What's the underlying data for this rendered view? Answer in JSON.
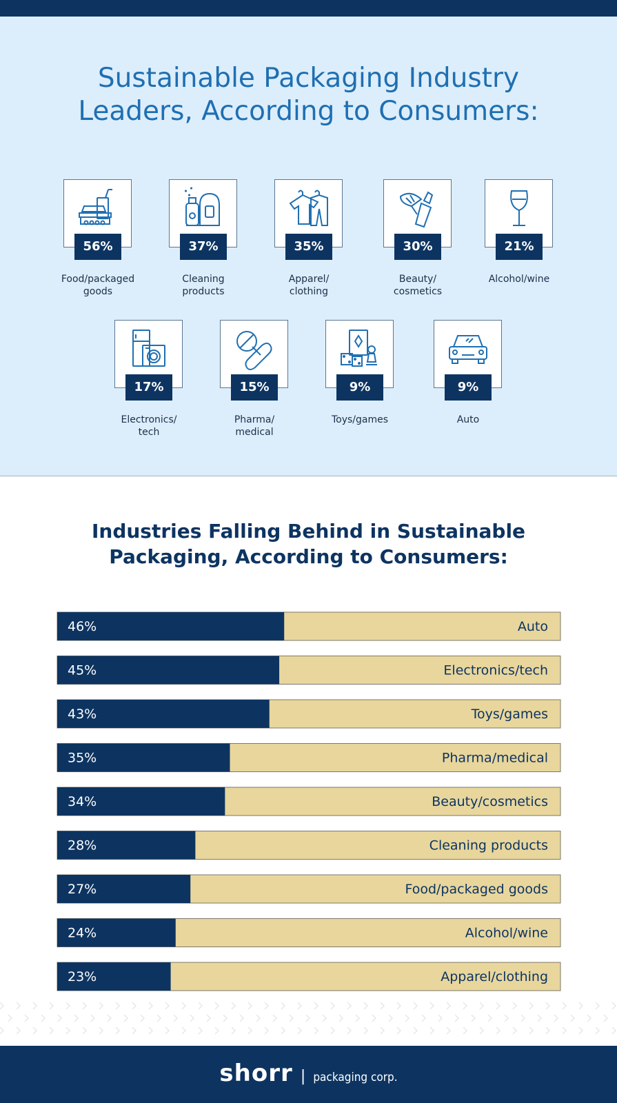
{
  "leaders": {
    "title_line1": "Sustainable Packaging Industry",
    "title_line2": "Leaders, According to Consumers:",
    "items": [
      {
        "pct": "56%",
        "label": "Food/packaged\ngoods",
        "icon": "food-container-icon"
      },
      {
        "pct": "37%",
        "label": "Cleaning\nproducts",
        "icon": "cleaning-bottles-icon"
      },
      {
        "pct": "35%",
        "label": "Apparel/\nclothing",
        "icon": "clothes-hanger-icon"
      },
      {
        "pct": "30%",
        "label": "Beauty/\ncosmetics",
        "icon": "makeup-brush-icon"
      },
      {
        "pct": "21%",
        "label": "Alcohol/wine",
        "icon": "wine-glass-icon"
      },
      {
        "pct": "17%",
        "label": "Electronics/\ntech",
        "icon": "appliances-icon"
      },
      {
        "pct": "15%",
        "label": "Pharma/\nmedical",
        "icon": "pills-icon"
      },
      {
        "pct": "9%",
        "label": "Toys/games",
        "icon": "board-game-icon"
      },
      {
        "pct": "9%",
        "label": "Auto",
        "icon": "car-icon"
      }
    ]
  },
  "behind": {
    "title": "Industries Falling Behind in Sustainable\nPackaging, According to Consumers:"
  },
  "chart_data": {
    "type": "bar",
    "orientation": "horizontal",
    "title": "Industries Falling Behind in Sustainable Packaging, According to Consumers:",
    "categories": [
      "Auto",
      "Electronics/tech",
      "Toys/games",
      "Pharma/medical",
      "Beauty/cosmetics",
      "Cleaning products",
      "Food/packaged goods",
      "Alcohol/wine",
      "Apparel/clothing"
    ],
    "values": [
      46,
      45,
      43,
      35,
      34,
      28,
      27,
      24,
      23
    ],
    "value_labels": [
      "46%",
      "45%",
      "43%",
      "35%",
      "34%",
      "28%",
      "27%",
      "24%",
      "23%"
    ],
    "xlim": [
      0,
      100
    ],
    "bar_color": "#0d3461",
    "track_color": "#e8d69d"
  },
  "leaders_chart": {
    "type": "table",
    "categories": [
      "Food/packaged goods",
      "Cleaning products",
      "Apparel/clothing",
      "Beauty/cosmetics",
      "Alcohol/wine",
      "Electronics/tech",
      "Pharma/medical",
      "Toys/games",
      "Auto"
    ],
    "values": [
      56,
      37,
      35,
      30,
      21,
      17,
      15,
      9,
      9
    ]
  },
  "footer": {
    "brand": "shorr",
    "separator": "|",
    "tagline": "packaging corp."
  },
  "colors": {
    "navy": "#0d3461",
    "title_blue": "#1f6fb2",
    "panel_bg": "#dceefb",
    "track": "#e8d69d"
  }
}
